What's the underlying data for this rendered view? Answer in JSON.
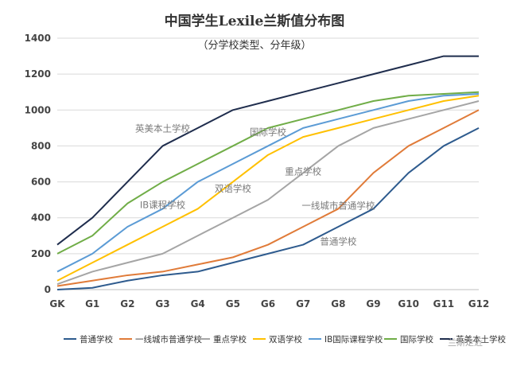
{
  "chart_data": {
    "type": "line",
    "title": "中国学生Lexile兰斯值分布图",
    "subtitle": "（分学校类型、分年级）",
    "xlabel": "",
    "ylabel": "",
    "categories": [
      "GK",
      "G1",
      "G2",
      "G3",
      "G4",
      "G5",
      "G6",
      "G7",
      "G8",
      "G9",
      "G10",
      "G11",
      "G12"
    ],
    "ylim": [
      0,
      1400
    ],
    "yticks": [
      0,
      200,
      400,
      600,
      800,
      1000,
      1200,
      1400
    ],
    "grid": true,
    "legend_position": "bottom",
    "series": [
      {
        "name": "普通学校",
        "color": "#2e5b8e",
        "values": [
          0,
          10,
          50,
          80,
          100,
          150,
          200,
          250,
          350,
          450,
          650,
          800,
          900
        ]
      },
      {
        "name": "一线城市普通学校",
        "color": "#e07b39",
        "values": [
          20,
          50,
          80,
          100,
          140,
          180,
          250,
          350,
          450,
          650,
          800,
          900,
          1000
        ]
      },
      {
        "name": "重点学校",
        "color": "#a5a5a5",
        "values": [
          30,
          100,
          150,
          200,
          300,
          400,
          500,
          650,
          800,
          900,
          950,
          1000,
          1050
        ]
      },
      {
        "name": "双语学校",
        "color": "#ffc000",
        "values": [
          50,
          150,
          250,
          350,
          450,
          600,
          750,
          850,
          900,
          950,
          1000,
          1050,
          1080
        ]
      },
      {
        "name": "IB国际课程学校",
        "color": "#5b9bd5",
        "values": [
          100,
          200,
          350,
          450,
          600,
          700,
          800,
          900,
          950,
          1000,
          1050,
          1080,
          1090
        ]
      },
      {
        "name": "国际学校",
        "color": "#70ad47",
        "values": [
          200,
          300,
          480,
          600,
          700,
          800,
          900,
          950,
          1000,
          1050,
          1080,
          1090,
          1100
        ]
      },
      {
        "name": "英美本土学校",
        "color": "#1f2d4d",
        "values": [
          250,
          400,
          600,
          800,
          900,
          1000,
          1050,
          1100,
          1150,
          1200,
          1250,
          1300,
          1300
        ]
      }
    ],
    "annotations": [
      {
        "text": "英美本土学校",
        "x": "G3",
        "y": 880
      },
      {
        "text": "国际学校",
        "x": "G6",
        "y": 860
      },
      {
        "text": "IB课程学校",
        "x": "G3",
        "y": 455
      },
      {
        "text": "双语学校",
        "x": "G5",
        "y": 545
      },
      {
        "text": "重点学校",
        "x": "G7",
        "y": 640
      },
      {
        "text": "一线城市普通学校",
        "x": "G8",
        "y": 450
      },
      {
        "text": "普通学校",
        "x": "G8",
        "y": 250
      }
    ]
  },
  "watermark": "兰斯走近"
}
